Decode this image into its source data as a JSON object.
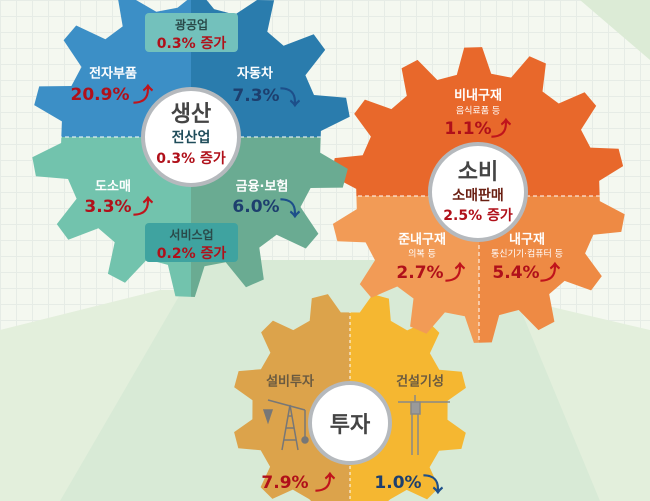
{
  "production": {
    "title": "생산",
    "total_label": "전산업",
    "total_value": "0.3% 증가",
    "mining": {
      "label": "광공업",
      "value": "0.3% 증가"
    },
    "services": {
      "label": "서비스업",
      "value": "0.2% 증가"
    },
    "items": [
      {
        "label": "전자부품",
        "value": "20.9%",
        "direction": "up"
      },
      {
        "label": "자동차",
        "value": "7.3%",
        "direction": "down"
      },
      {
        "label": "도소매",
        "value": "3.3%",
        "direction": "up"
      },
      {
        "label": "금융·보험",
        "value": "6.0%",
        "direction": "down"
      }
    ],
    "colors": {
      "top_left": "#3c8fc6",
      "top_right": "#2a7cad",
      "bottom_left": "#72c3ad",
      "bottom_right": "#6aab92"
    }
  },
  "consumption": {
    "title": "소비",
    "total_label": "소매판매",
    "total_value": "2.5% 증가",
    "items": [
      {
        "label": "비내구재",
        "note": "음식료품 등",
        "value": "1.1%",
        "direction": "up"
      },
      {
        "label": "준내구재",
        "note": "의복 등",
        "value": "2.7%",
        "direction": "up"
      },
      {
        "label": "내구재",
        "note": "통신기기·컴퓨터 등",
        "value": "5.4%",
        "direction": "up"
      }
    ],
    "colors": {
      "top": "#e8682b",
      "bottom_left": "#f29b56",
      "bottom_right": "#ee8a44"
    }
  },
  "investment": {
    "title": "투자",
    "items": [
      {
        "label": "설비투자",
        "value": "7.9%",
        "direction": "up",
        "icon": "oil-pump-icon"
      },
      {
        "label": "건설기성",
        "value": "1.0%",
        "direction": "down",
        "icon": "crane-icon"
      }
    ],
    "colors": {
      "left": "#dca34b",
      "right": "#f5b731"
    }
  },
  "arrows": {
    "up": "⤴",
    "down": "⤵"
  }
}
